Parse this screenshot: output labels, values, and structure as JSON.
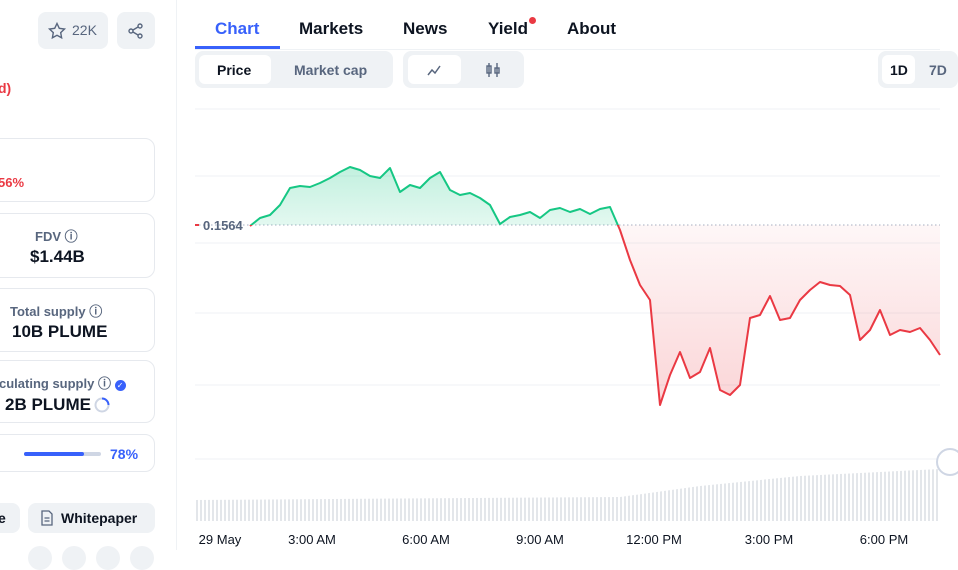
{
  "sidebar": {
    "watchlist_count": "22K",
    "partial_heading": "d)",
    "partial_change": "56%",
    "stats": [
      {
        "label": "FDV",
        "value": "$1.44B"
      },
      {
        "label": "Total supply",
        "value": "10B PLUME"
      },
      {
        "label": "culating supply",
        "value": "2B PLUME"
      }
    ],
    "progress_value": 78,
    "progress_label": "78%",
    "links": [
      "e",
      "Whitepaper"
    ]
  },
  "tabs": [
    "Chart",
    "Markets",
    "News",
    "Yield",
    "About"
  ],
  "toggles": [
    "Price",
    "Market cap"
  ],
  "ranges": [
    "1D",
    "7D"
  ],
  "chart_data": {
    "type": "line",
    "x_labels": [
      "29 May",
      "3:00 AM",
      "6:00 AM",
      "9:00 AM",
      "12:00 PM",
      "3:00 PM",
      "6:00 PM"
    ],
    "baseline": 0.1564,
    "ylim": [
      0.1375,
      0.16445
    ],
    "up_color": "#16c784",
    "down_color": "#ea3943",
    "values": [
      0.15633,
      0.15689,
      0.1571,
      0.1578,
      0.15899,
      0.15913,
      0.15906,
      0.15934,
      0.15969,
      0.16011,
      0.16046,
      0.16025,
      0.15983,
      0.15969,
      0.16039,
      0.15871,
      0.1592,
      0.15899,
      0.15969,
      0.16011,
      0.15885,
      0.1585,
      0.15864,
      0.15829,
      0.1578,
      0.15647,
      0.15696,
      0.1571,
      0.15731,
      0.15689,
      0.15745,
      0.15759,
      0.15731,
      0.15752,
      0.15717,
      0.15752,
      0.15766,
      0.15605,
      0.15395,
      0.1522,
      0.15115,
      0.1438,
      0.1459,
      0.14751,
      0.14569,
      0.14611,
      0.14779,
      0.14485,
      0.1445,
      0.1452,
      0.14989,
      0.1501,
      0.15143,
      0.14975,
      0.14989,
      0.15115,
      0.15185,
      0.15241,
      0.1522,
      0.15213,
      0.1515,
      0.14835,
      0.14905,
      0.15045,
      0.1487,
      0.14905,
      0.14891,
      0.14919,
      0.14835,
      0.1473
    ]
  }
}
